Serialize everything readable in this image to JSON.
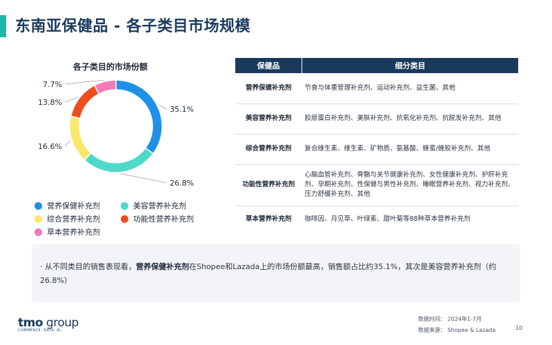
{
  "page": {
    "title": "东南亚保健品 - 各子类目市场规模",
    "accent_color": "#1fb5a8",
    "page_number": "10"
  },
  "chart_data": {
    "type": "pie",
    "variant": "donut",
    "title": "各子类目的市场份额",
    "categories": [
      "营养保健补充剂",
      "美容营养补充剂",
      "综合营养补充剂",
      "功能性营养补充剂",
      "草本营养补充剂"
    ],
    "values": [
      35.1,
      26.8,
      16.6,
      13.8,
      7.7
    ],
    "value_labels": [
      "35.1%",
      "26.8%",
      "16.6%",
      "13.8%",
      "7.7%"
    ],
    "colors": [
      "#1e90e8",
      "#4fd9c8",
      "#fbe76a",
      "#ee4e1e",
      "#f37ab8"
    ],
    "legend_position": "bottom"
  },
  "table": {
    "headers": [
      "保健品",
      "细分类目"
    ],
    "rows": [
      {
        "category": "营养保健补充剂",
        "details": "节食与体重管理补充剂、运动补充剂、益生菌、其他"
      },
      {
        "category": "美容营养补充剂",
        "details": "胶原蛋白补充剂、美肤补充剂、抗氧化补充剂、抗脱发补充剂、其他"
      },
      {
        "category": "综合营养补充剂",
        "details": "复合维生素、维生素、矿物质、氨基酸、蜂蜜/蜂胶补充剂、其他"
      },
      {
        "category": "功能性营养补充剂",
        "details": "心脑血管补充剂、骨骼与关节健康补充剂、女性健康补充剂、护肝补充剂、孕期补充剂、性保健与男性补充剂、睡眠营养补充剂、视力补充剂、压力舒缓补充剂、其他"
      },
      {
        "category": "草本营养补充剂",
        "details": "咖啡因、月见草、叶绿素、甜叶菊等88种草本营养补充剂"
      }
    ]
  },
  "note": {
    "bullet": "·",
    "prefix": "从不同类目的销售表现看，",
    "highlight": "营养保健补充剂",
    "suffix": "在Shopee和Lazada上的市场份额最高，销售额占比约35.1%，其次是美容营养补充剂（约26.8%）"
  },
  "footer": {
    "logo_main": "tmo",
    "logo_group": " group",
    "logo_tagline": "COMMERCE. DATA. AI.",
    "time_line": "数据时间： 2024年1-7月",
    "source_line": "数据来源： Shopee & Lazada"
  }
}
